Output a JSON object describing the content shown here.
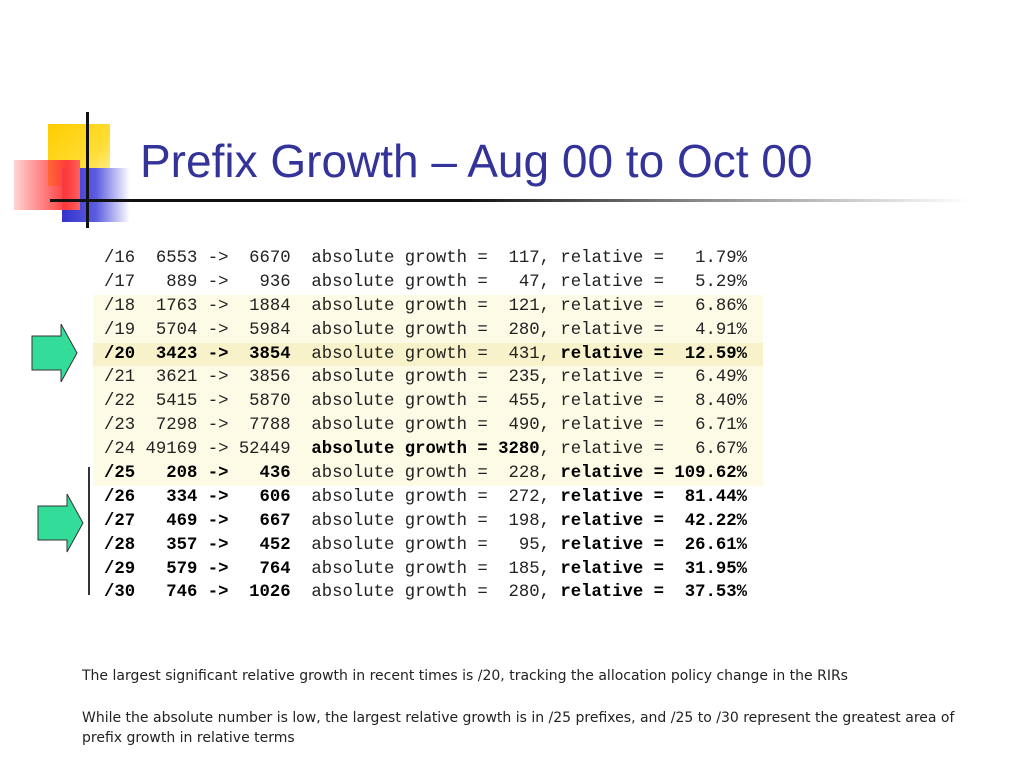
{
  "title": "Prefix Growth – Aug 00 to Oct 00",
  "rows": [
    {
      "prefix": "/16",
      "from": "6553",
      "to": "6670",
      "absolute": "117",
      "relative": "1.79%",
      "bold_left": false,
      "bold_abs": false,
      "bold_rel": false,
      "hl": ""
    },
    {
      "prefix": "/17",
      "from": "889",
      "to": "936",
      "absolute": "47",
      "relative": "5.29%",
      "bold_left": false,
      "bold_abs": false,
      "bold_rel": false,
      "hl": ""
    },
    {
      "prefix": "/18",
      "from": "1763",
      "to": "1884",
      "absolute": "121",
      "relative": "6.86%",
      "bold_left": false,
      "bold_abs": false,
      "bold_rel": false,
      "hl": "light"
    },
    {
      "prefix": "/19",
      "from": "5704",
      "to": "5984",
      "absolute": "280",
      "relative": "4.91%",
      "bold_left": false,
      "bold_abs": false,
      "bold_rel": false,
      "hl": "light"
    },
    {
      "prefix": "/20",
      "from": "3423",
      "to": "3854",
      "absolute": "431",
      "relative": "12.59%",
      "bold_left": true,
      "bold_abs": false,
      "bold_rel": true,
      "hl": "strong"
    },
    {
      "prefix": "/21",
      "from": "3621",
      "to": "3856",
      "absolute": "235",
      "relative": "6.49%",
      "bold_left": false,
      "bold_abs": false,
      "bold_rel": false,
      "hl": "light"
    },
    {
      "prefix": "/22",
      "from": "5415",
      "to": "5870",
      "absolute": "455",
      "relative": "8.40%",
      "bold_left": false,
      "bold_abs": false,
      "bold_rel": false,
      "hl": "light"
    },
    {
      "prefix": "/23",
      "from": "7298",
      "to": "7788",
      "absolute": "490",
      "relative": "6.71%",
      "bold_left": false,
      "bold_abs": false,
      "bold_rel": false,
      "hl": "light"
    },
    {
      "prefix": "/24",
      "from": "49169",
      "to": "52449",
      "absolute": "3280",
      "relative": "6.67%",
      "bold_left": false,
      "bold_abs": true,
      "bold_rel": false,
      "hl": "light"
    },
    {
      "prefix": "/25",
      "from": "208",
      "to": "436",
      "absolute": "228",
      "relative": "109.62%",
      "bold_left": true,
      "bold_abs": false,
      "bold_rel": true,
      "hl": "light"
    },
    {
      "prefix": "/26",
      "from": "334",
      "to": "606",
      "absolute": "272",
      "relative": "81.44%",
      "bold_left": true,
      "bold_abs": false,
      "bold_rel": true,
      "hl": ""
    },
    {
      "prefix": "/27",
      "from": "469",
      "to": "667",
      "absolute": "198",
      "relative": "42.22%",
      "bold_left": true,
      "bold_abs": false,
      "bold_rel": true,
      "hl": ""
    },
    {
      "prefix": "/28",
      "from": "357",
      "to": "452",
      "absolute": "95",
      "relative": "26.61%",
      "bold_left": true,
      "bold_abs": false,
      "bold_rel": true,
      "hl": ""
    },
    {
      "prefix": "/29",
      "from": "579",
      "to": "764",
      "absolute": "185",
      "relative": "31.95%",
      "bold_left": true,
      "bold_abs": false,
      "bold_rel": true,
      "hl": ""
    },
    {
      "prefix": "/30",
      "from": "746",
      "to": "1026",
      "absolute": "280",
      "relative": "37.53%",
      "bold_left": true,
      "bold_abs": false,
      "bold_rel": true,
      "hl": ""
    }
  ],
  "labels": {
    "arrow": "->",
    "absolute_label": "absolute growth =",
    "relative_label": "relative ="
  },
  "notes": {
    "note1": "The largest significant relative growth in recent times is /20, tracking the allocation policy change in the RIRs",
    "note2": "While the absolute number is low, the largest relative growth is in /25 prefixes, and /25 to /30 represent the greatest area of prefix growth in relative terms"
  },
  "colors": {
    "title": "#333399",
    "arrow_fill": "#33dd99",
    "highlight_light": "#fdfbe6",
    "highlight_strong": "#f7f2c9"
  }
}
